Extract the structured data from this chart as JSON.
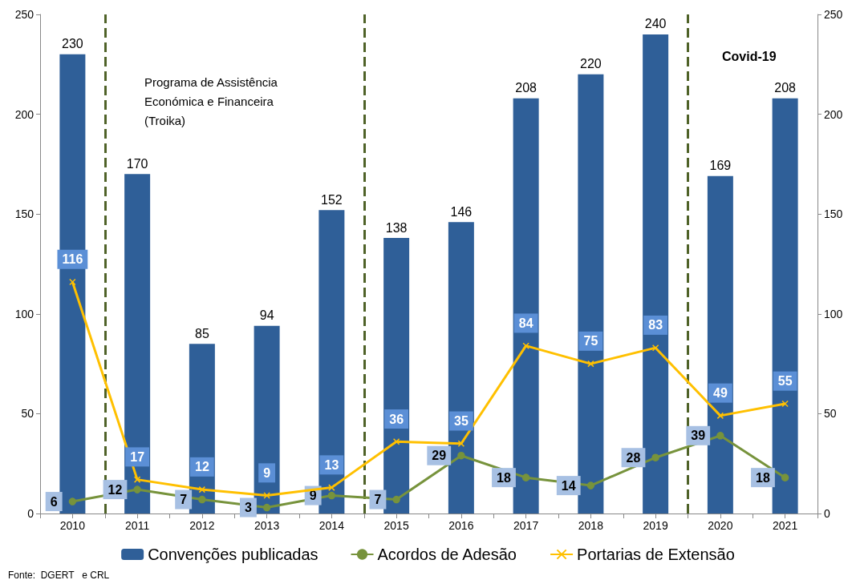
{
  "chart_data": {
    "type": "bar",
    "x": [
      2010,
      2011,
      2012,
      2013,
      2014,
      2015,
      2016,
      2017,
      2018,
      2019,
      2020,
      2021
    ],
    "xlim": [
      2009.5,
      2021.5
    ],
    "xticks": [
      {
        "value": 2009.5,
        "label": null
      },
      2010,
      {
        "value": 2010.5,
        "label": null
      },
      2011,
      {
        "value": 2011.5,
        "label": null
      },
      2012,
      {
        "value": 2012.5,
        "label": null
      },
      2013,
      {
        "value": 2013.5,
        "label": null
      },
      2014,
      {
        "value": 2014.5,
        "label": null
      },
      2015,
      {
        "value": 2015.5,
        "label": null
      },
      2016,
      {
        "value": 2016.5,
        "label": null
      },
      2017,
      {
        "value": 2017.5,
        "label": null
      },
      2018,
      {
        "value": 2018.5,
        "label": null
      },
      2019,
      {
        "value": 2019.5,
        "label": null
      },
      2020,
      {
        "value": 2020.5,
        "label": null
      },
      2021,
      {
        "value": 2021.5,
        "label": null
      }
    ],
    "ylim": [
      0,
      250
    ],
    "yticks": [
      0,
      50,
      100,
      150,
      200,
      250
    ],
    "y2lim": [
      0,
      250
    ],
    "y2ticks": [
      0,
      50,
      100,
      150,
      200,
      250
    ],
    "series": [
      {
        "name": "Convenções publicadas",
        "color": "#2f5f98",
        "values": [
          230,
          170,
          85,
          94,
          152,
          138,
          146,
          208,
          220,
          240,
          169,
          208
        ]
      },
      {
        "name": "Acordos de Adesão",
        "type": "line",
        "color": "#77933c",
        "marker": "circle",
        "values": [
          6,
          12,
          7,
          3,
          9,
          7,
          29,
          18,
          14,
          28,
          39,
          18
        ]
      },
      {
        "name": "Portarias de Extensão",
        "type": "line",
        "color": "#ffc000",
        "marker": "cross",
        "values": [
          116,
          17,
          12,
          9,
          13,
          36,
          35,
          84,
          75,
          83,
          49,
          55
        ]
      }
    ],
    "data_labels": true,
    "ref_lines": [
      {
        "axis": "x",
        "value": 2010.5,
        "color": "#4f6228",
        "line_style": "dashed"
      },
      {
        "axis": "x",
        "value": 2014.5,
        "color": "#4f6228",
        "line_style": "dashed"
      },
      {
        "axis": "x",
        "value": 2019.5,
        "color": "#4f6228",
        "line_style": "dashed"
      }
    ],
    "annotations": [
      "Programa de Assistência\nEconómica e Financeira\n(Troika)",
      "Covid-19",
      "Fonte:  DGERT   e CRL"
    ],
    "grid": false,
    "legend": "bottom",
    "line_style": "solid"
  }
}
